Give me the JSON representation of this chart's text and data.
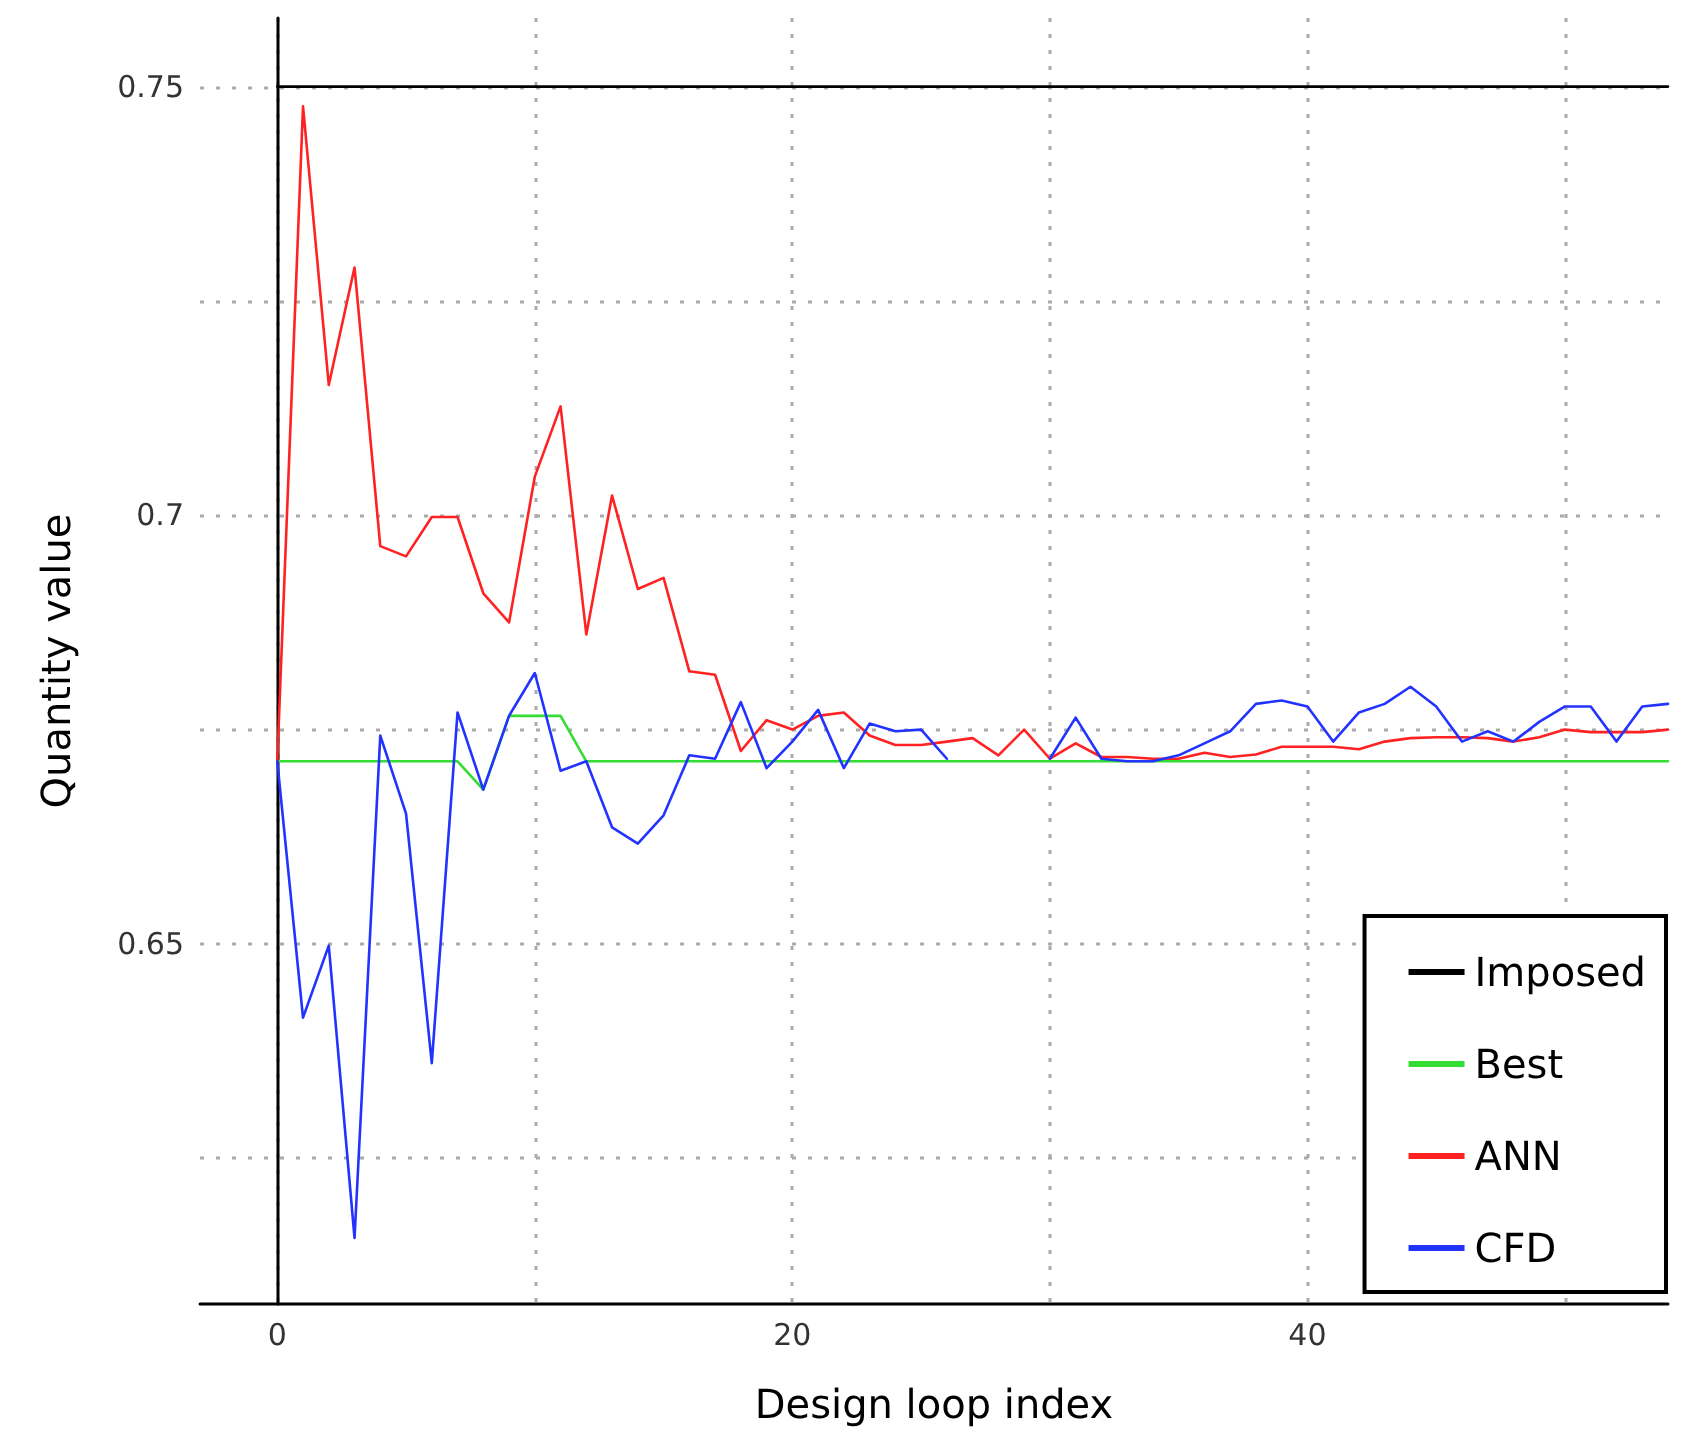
{
  "chart_data": {
    "type": "line",
    "xlabel": "Design loop index",
    "ylabel": "Quantity value",
    "x": [
      0,
      1,
      2,
      3,
      4,
      5,
      6,
      7,
      8,
      9,
      10,
      11,
      12,
      13,
      14,
      15,
      16,
      17,
      18,
      19,
      20,
      21,
      22,
      23,
      24,
      25,
      26,
      27,
      28,
      29,
      30,
      31,
      32,
      33,
      34,
      35,
      36,
      37,
      38,
      39,
      40,
      41,
      42,
      43,
      44,
      45,
      46,
      47,
      48,
      49,
      50,
      51,
      52,
      53,
      54
    ],
    "xlim": [
      -3,
      54
    ],
    "xticks": [
      0,
      {
        "value": 10,
        "label": null
      },
      20,
      {
        "value": 30,
        "label": null
      },
      40,
      {
        "value": 50,
        "label": null
      }
    ],
    "ylim": [
      0.608,
      0.758
    ],
    "yticks": [
      {
        "value": 0.625,
        "label": null
      },
      0.65,
      {
        "value": 0.675,
        "label": null
      },
      0.7,
      {
        "value": 0.725,
        "label": null
      },
      0.75
    ],
    "grid": true,
    "legend": "bottom right",
    "marker": "none",
    "line_style": "solid",
    "series": [
      {
        "name": "Imposed",
        "color": "#000000",
        "x": [
          0,
          54
        ],
        "values": [
          0.75,
          0.75
        ]
      },
      {
        "name": "Best",
        "color": "#33dd33",
        "values": [
          0.6713,
          0.6713,
          0.6713,
          0.6713,
          0.6713,
          0.6713,
          0.6713,
          0.6713,
          0.668,
          0.6766,
          0.6766,
          0.6766,
          0.6713,
          0.6713,
          0.6713,
          0.6713,
          0.6713,
          0.6713,
          0.6713,
          0.6713,
          0.6713,
          0.6713,
          0.6713,
          0.6713,
          0.6713,
          0.6713,
          0.6713,
          0.6713,
          0.6713,
          0.6713,
          0.6713,
          0.6713,
          0.6713,
          0.6713,
          0.6713,
          0.6713,
          0.6713,
          0.6713,
          0.6713,
          0.6713,
          0.6713,
          0.6713,
          0.6713,
          0.6713,
          0.6713,
          0.6713,
          0.6713,
          0.6713,
          0.6713,
          0.6713,
          0.6713,
          0.6713,
          0.6713,
          0.6713,
          0.6713
        ]
      },
      {
        "name": "ANN",
        "color": "#ff2222",
        "values": [
          0.6713,
          0.7477,
          0.7152,
          0.7289,
          0.6964,
          0.6952,
          0.6998,
          0.6998,
          0.6909,
          0.6875,
          0.7045,
          0.7127,
          0.6861,
          0.7023,
          0.6914,
          0.6927,
          0.6818,
          0.6814,
          0.6725,
          0.6761,
          0.675,
          0.6766,
          0.677,
          0.6743,
          0.6732,
          0.6732,
          0.6736,
          0.674,
          0.672,
          0.675,
          0.6716,
          0.6734,
          0.6718,
          0.6718,
          0.6716,
          0.6716,
          0.6723,
          0.6718,
          0.6721,
          0.673,
          0.673,
          0.673,
          0.6727,
          0.6736,
          0.674,
          0.6741,
          0.6741,
          0.674,
          0.6736,
          0.6741,
          0.675,
          0.6747,
          0.6747,
          0.6747,
          0.675
        ]
      },
      {
        "name": "CFD",
        "color": "#2233ff",
        "values": [
          0.6713,
          0.6414,
          0.6498,
          0.6157,
          0.6743,
          0.6652,
          0.6361,
          0.677,
          0.668,
          0.6766,
          0.6816,
          0.6702,
          0.6713,
          0.6636,
          0.6617,
          0.665,
          0.672,
          0.6716,
          0.6782,
          0.6705,
          0.6736,
          0.6773,
          0.6705,
          0.6757,
          0.6748,
          0.675,
          0.6716,
          null,
          null,
          null,
          0.6716,
          0.6764,
          0.6716,
          0.6713,
          0.6713,
          0.672,
          0.6734,
          0.6748,
          0.678,
          0.6784,
          0.6777,
          0.6736,
          0.677,
          0.678,
          0.68,
          0.6777,
          0.6736,
          0.6748,
          0.6736,
          0.6759,
          0.6777,
          0.6777,
          0.6736,
          0.6777,
          0.678
        ]
      }
    ]
  }
}
